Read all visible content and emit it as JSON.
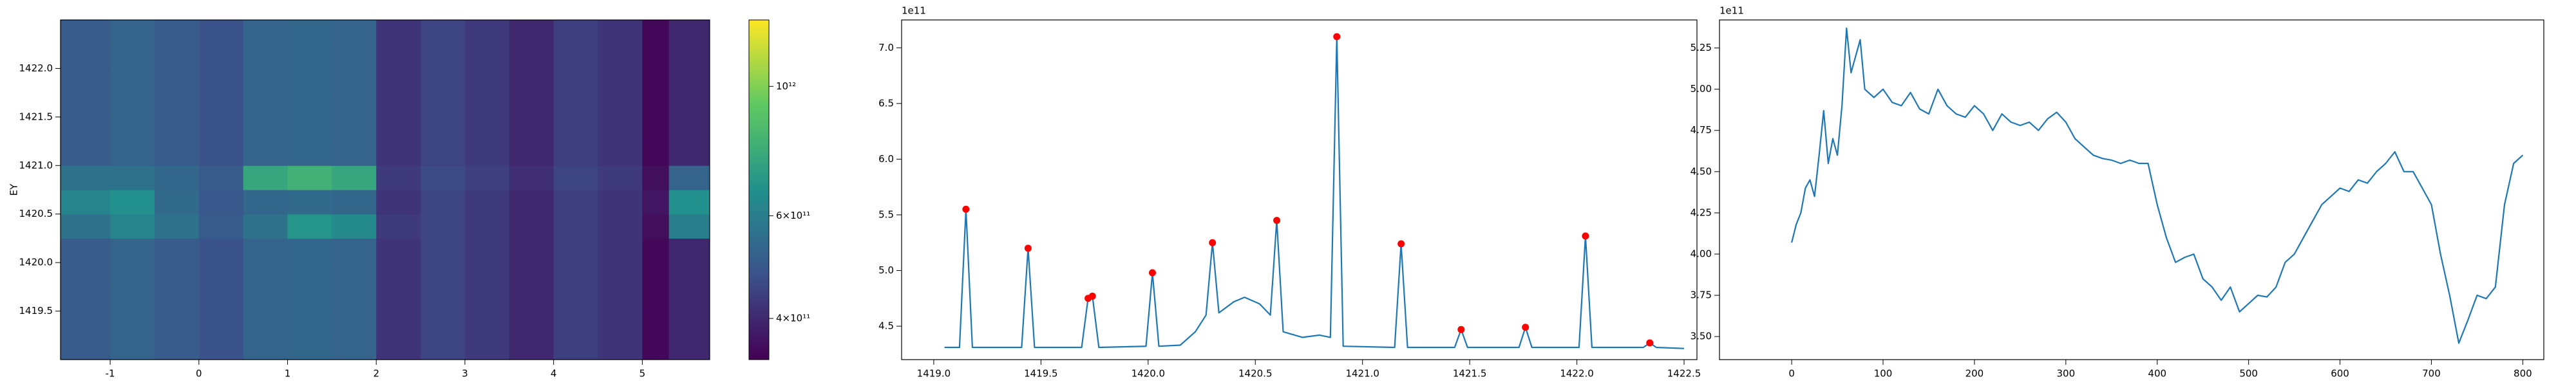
{
  "chart_data": [
    {
      "type": "heatmap",
      "ylabel": "EY",
      "colorscale": "viridis",
      "log_color": true,
      "xbins": [
        -1.56,
        -1,
        -0.5,
        0,
        0.5,
        1,
        1.5,
        2,
        2.5,
        3,
        3.5,
        4,
        4.5,
        5,
        5.3,
        5.76
      ],
      "ybins": [
        1419.0,
        1419.25,
        1419.5,
        1419.75,
        1420.0,
        1420.25,
        1420.5,
        1420.75,
        1421.0,
        1421.25,
        1421.5,
        1421.75,
        1422.0,
        1422.25,
        1422.5
      ],
      "values": [
        [
          500000000000.0,
          520000000000.0,
          500000000000.0,
          480000000000.0,
          520000000000.0,
          530000000000.0,
          520000000000.0,
          420000000000.0,
          450000000000.0,
          430000000000.0,
          400000000000.0,
          440000000000.0,
          420000000000.0,
          350000000000.0,
          400000000000.0
        ],
        [
          500000000000.0,
          520000000000.0,
          500000000000.0,
          480000000000.0,
          520000000000.0,
          530000000000.0,
          520000000000.0,
          420000000000.0,
          450000000000.0,
          430000000000.0,
          400000000000.0,
          440000000000.0,
          420000000000.0,
          350000000000.0,
          400000000000.0
        ],
        [
          500000000000.0,
          520000000000.0,
          500000000000.0,
          480000000000.0,
          520000000000.0,
          530000000000.0,
          520000000000.0,
          420000000000.0,
          450000000000.0,
          430000000000.0,
          400000000000.0,
          440000000000.0,
          420000000000.0,
          350000000000.0,
          400000000000.0
        ],
        [
          500000000000.0,
          520000000000.0,
          500000000000.0,
          480000000000.0,
          520000000000.0,
          530000000000.0,
          520000000000.0,
          420000000000.0,
          450000000000.0,
          430000000000.0,
          400000000000.0,
          440000000000.0,
          420000000000.0,
          350000000000.0,
          400000000000.0
        ],
        [
          500000000000.0,
          520000000000.0,
          500000000000.0,
          480000000000.0,
          520000000000.0,
          530000000000.0,
          520000000000.0,
          420000000000.0,
          450000000000.0,
          430000000000.0,
          400000000000.0,
          440000000000.0,
          420000000000.0,
          350000000000.0,
          400000000000.0
        ],
        [
          560000000000.0,
          620000000000.0,
          560000000000.0,
          500000000000.0,
          560000000000.0,
          680000000000.0,
          640000000000.0,
          430000000000.0,
          450000000000.0,
          430000000000.0,
          400000000000.0,
          440000000000.0,
          420000000000.0,
          360000000000.0,
          600000000000.0
        ],
        [
          620000000000.0,
          660000000000.0,
          540000000000.0,
          490000000000.0,
          530000000000.0,
          540000000000.0,
          530000000000.0,
          420000000000.0,
          450000000000.0,
          430000000000.0,
          400000000000.0,
          440000000000.0,
          420000000000.0,
          370000000000.0,
          660000000000.0
        ],
        [
          560000000000.0,
          560000000000.0,
          530000000000.0,
          500000000000.0,
          750000000000.0,
          800000000000.0,
          750000000000.0,
          430000000000.0,
          460000000000.0,
          440000000000.0,
          410000000000.0,
          450000000000.0,
          430000000000.0,
          360000000000.0,
          520000000000.0
        ],
        [
          500000000000.0,
          520000000000.0,
          500000000000.0,
          480000000000.0,
          520000000000.0,
          530000000000.0,
          520000000000.0,
          420000000000.0,
          450000000000.0,
          430000000000.0,
          400000000000.0,
          440000000000.0,
          420000000000.0,
          350000000000.0,
          400000000000.0
        ],
        [
          500000000000.0,
          520000000000.0,
          500000000000.0,
          480000000000.0,
          520000000000.0,
          530000000000.0,
          520000000000.0,
          420000000000.0,
          450000000000.0,
          430000000000.0,
          400000000000.0,
          440000000000.0,
          420000000000.0,
          350000000000.0,
          400000000000.0
        ],
        [
          500000000000.0,
          520000000000.0,
          500000000000.0,
          480000000000.0,
          520000000000.0,
          530000000000.0,
          520000000000.0,
          420000000000.0,
          450000000000.0,
          430000000000.0,
          400000000000.0,
          440000000000.0,
          420000000000.0,
          350000000000.0,
          400000000000.0
        ],
        [
          500000000000.0,
          520000000000.0,
          500000000000.0,
          480000000000.0,
          520000000000.0,
          530000000000.0,
          520000000000.0,
          420000000000.0,
          450000000000.0,
          430000000000.0,
          400000000000.0,
          440000000000.0,
          420000000000.0,
          350000000000.0,
          400000000000.0
        ],
        [
          500000000000.0,
          520000000000.0,
          500000000000.0,
          480000000000.0,
          520000000000.0,
          530000000000.0,
          520000000000.0,
          420000000000.0,
          450000000000.0,
          430000000000.0,
          400000000000.0,
          440000000000.0,
          420000000000.0,
          350000000000.0,
          400000000000.0
        ],
        [
          500000000000.0,
          520000000000.0,
          500000000000.0,
          480000000000.0,
          520000000000.0,
          530000000000.0,
          520000000000.0,
          420000000000.0,
          450000000000.0,
          430000000000.0,
          400000000000.0,
          440000000000.0,
          420000000000.0,
          350000000000.0,
          400000000000.0
        ]
      ],
      "xlim": [
        -1.56,
        5.76
      ],
      "ylim": [
        1419.0,
        1422.5
      ],
      "xticks": [
        -1,
        0,
        1,
        2,
        3,
        4,
        5
      ],
      "yticks": [
        1419.5,
        {
          "value": 1420.0,
          "label": "1420.0"
        },
        1420.5,
        {
          "value": 1421.0,
          "label": "1421.0"
        },
        1421.5,
        {
          "value": 1422.0,
          "label": "1422.0"
        }
      ],
      "clim": [
        340000000000.0,
        1300000000000.0
      ],
      "cticks": [
        {
          "value": 400000000000.0,
          "label": "4×10¹¹"
        },
        {
          "value": 600000000000.0,
          "label": "6×10¹¹"
        },
        {
          "value": 1000000000000.0,
          "label": "10¹²"
        }
      ]
    },
    {
      "type": "line",
      "offset_label": "1e11",
      "xlim": [
        1418.85,
        1422.56
      ],
      "ylim": [
        4.2,
        7.25
      ],
      "xticks": [
        {
          "value": 1419.0,
          "label": "1419.0"
        },
        1419.5,
        {
          "value": 1420.0,
          "label": "1420.0"
        },
        1420.5,
        {
          "value": 1421.0,
          "label": "1421.0"
        },
        1421.5,
        {
          "value": 1422.0,
          "label": "1422.0"
        },
        1422.5
      ],
      "yticks": [
        4.5,
        {
          "value": 5.0,
          "label": "5.0"
        },
        5.5,
        {
          "value": 6.0,
          "label": "6.0"
        },
        6.5,
        {
          "value": 7.0,
          "label": "7.0"
        }
      ],
      "series": [
        {
          "color": "#1f77b4",
          "marker": false,
          "x": [
            1419.05,
            1419.12,
            1419.15,
            1419.18,
            1419.41,
            1419.44,
            1419.47,
            1419.69,
            1419.72,
            1419.74,
            1419.77,
            1419.99,
            1420.02,
            1420.05,
            1420.15,
            1420.22,
            1420.27,
            1420.3,
            1420.33,
            1420.4,
            1420.45,
            1420.52,
            1420.57,
            1420.6,
            1420.63,
            1420.72,
            1420.8,
            1420.85,
            1420.88,
            1420.91,
            1421.15,
            1421.18,
            1421.21,
            1421.43,
            1421.46,
            1421.49,
            1421.73,
            1421.76,
            1421.79,
            1422.01,
            1422.04,
            1422.07,
            1422.31,
            1422.34,
            1422.37,
            1422.5
          ],
          "values": [
            4.31,
            4.31,
            5.55,
            4.31,
            4.31,
            5.2,
            4.31,
            4.31,
            4.75,
            4.77,
            4.31,
            4.32,
            4.98,
            4.32,
            4.33,
            4.45,
            4.6,
            5.25,
            4.62,
            4.72,
            4.76,
            4.7,
            4.6,
            5.45,
            4.45,
            4.4,
            4.42,
            4.4,
            7.1,
            4.32,
            4.31,
            5.24,
            4.31,
            4.31,
            4.47,
            4.31,
            4.31,
            4.49,
            4.31,
            4.31,
            5.31,
            4.31,
            4.31,
            4.35,
            4.31,
            4.3
          ]
        },
        {
          "color": "#ff0000",
          "marker": true,
          "x": [
            1419.15,
            1419.44,
            1419.72,
            1419.74,
            1420.02,
            1420.3,
            1420.6,
            1420.88,
            1421.18,
            1421.46,
            1421.76,
            1422.04,
            1422.34
          ],
          "values": [
            5.55,
            5.2,
            4.75,
            4.77,
            4.98,
            5.25,
            5.45,
            7.1,
            5.24,
            4.47,
            4.49,
            5.31,
            4.35
          ]
        }
      ]
    },
    {
      "type": "line",
      "offset_label": "1e11",
      "xlim": [
        -79,
        823
      ],
      "ylim": [
        3.36,
        5.42
      ],
      "xticks": [
        0,
        100,
        200,
        300,
        400,
        500,
        600,
        700,
        800
      ],
      "yticks": [
        {
          "value": 3.5,
          "label": "3.50"
        },
        3.75,
        {
          "value": 4.0,
          "label": "4.00"
        },
        4.25,
        {
          "value": 4.5,
          "label": "4.50"
        },
        4.75,
        {
          "value": 5.0,
          "label": "5.00"
        },
        5.25
      ],
      "series": [
        {
          "color": "#1f77b4",
          "marker": false,
          "x": [
            0,
            5,
            10,
            15,
            20,
            25,
            30,
            35,
            40,
            45,
            50,
            55,
            60,
            65,
            70,
            75,
            80,
            90,
            100,
            110,
            120,
            130,
            140,
            150,
            160,
            170,
            180,
            190,
            200,
            210,
            220,
            230,
            240,
            250,
            260,
            270,
            280,
            290,
            300,
            310,
            320,
            330,
            340,
            350,
            360,
            370,
            380,
            390,
            400,
            410,
            420,
            430,
            440,
            450,
            460,
            470,
            480,
            490,
            500,
            510,
            520,
            530,
            540,
            550,
            560,
            570,
            580,
            590,
            600,
            610,
            620,
            630,
            640,
            650,
            660,
            670,
            680,
            690,
            700,
            710,
            720,
            730,
            740,
            750,
            760,
            770,
            780,
            790,
            800
          ],
          "values": [
            4.07,
            4.18,
            4.25,
            4.4,
            4.45,
            4.35,
            4.6,
            4.87,
            4.55,
            4.7,
            4.6,
            4.9,
            5.37,
            5.1,
            5.2,
            5.3,
            5.0,
            4.95,
            5.0,
            4.92,
            4.9,
            4.98,
            4.88,
            4.85,
            5.0,
            4.9,
            4.85,
            4.83,
            4.9,
            4.85,
            4.75,
            4.85,
            4.8,
            4.78,
            4.8,
            4.75,
            4.82,
            4.86,
            4.8,
            4.7,
            4.65,
            4.6,
            4.58,
            4.57,
            4.55,
            4.57,
            4.55,
            4.55,
            4.3,
            4.1,
            3.95,
            3.98,
            4.0,
            3.85,
            3.8,
            3.72,
            3.8,
            3.65,
            3.7,
            3.75,
            3.74,
            3.8,
            3.95,
            4.0,
            4.1,
            4.2,
            4.3,
            4.35,
            4.4,
            4.38,
            4.45,
            4.43,
            4.5,
            4.55,
            4.62,
            4.5,
            4.5,
            4.4,
            4.3,
            4.0,
            3.75,
            3.46,
            3.6,
            3.75,
            3.73,
            3.8,
            4.3,
            4.55,
            4.6
          ]
        }
      ]
    }
  ]
}
